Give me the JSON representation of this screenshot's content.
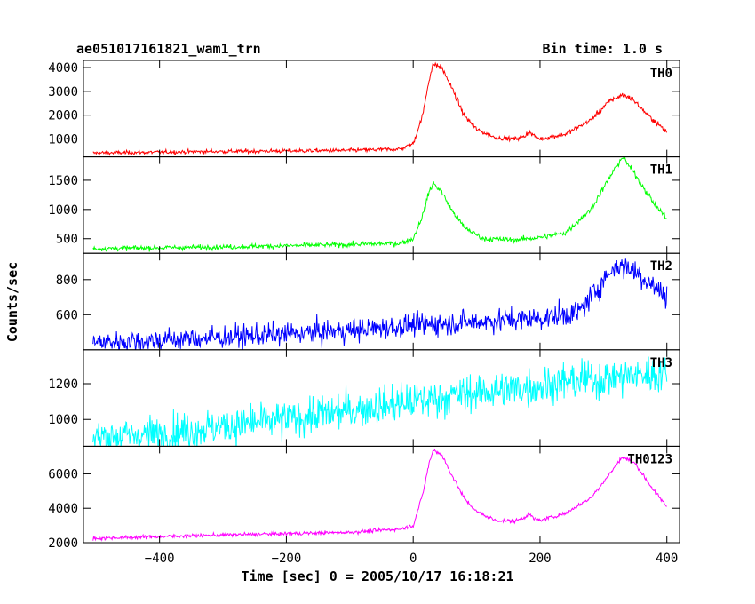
{
  "chart_data": {
    "type": "line",
    "title": "ae051017161821_wam1_trn",
    "subtitle": "Bin time: 1.0 s",
    "xlabel": "Time [sec] 0 = 2005/10/17 16:18:21",
    "ylabel": "Counts/sec",
    "xlim": [
      -520,
      420
    ],
    "x_ticks": [
      -400,
      -200,
      0,
      200,
      400
    ],
    "x_tick_labels": [
      "−400",
      "−200",
      "0",
      "200",
      "400"
    ],
    "x_range": [
      -505,
      400
    ],
    "grid": false,
    "panels": [
      {
        "name": "TH0",
        "color": "#ff0000",
        "ylim": [
          250,
          4300
        ],
        "y_ticks": [
          1000,
          2000,
          3000,
          4000
        ],
        "y_tick_labels": [
          "1000",
          "2000",
          "3000",
          "4000"
        ],
        "noise": 35,
        "keypoints": [
          [
            -505,
            410
          ],
          [
            -300,
            480
          ],
          [
            -100,
            520
          ],
          [
            -20,
            580
          ],
          [
            0,
            800
          ],
          [
            15,
            2000
          ],
          [
            25,
            3500
          ],
          [
            32,
            4150
          ],
          [
            45,
            4000
          ],
          [
            60,
            3200
          ],
          [
            80,
            2000
          ],
          [
            100,
            1400
          ],
          [
            130,
            1050
          ],
          [
            160,
            1000
          ],
          [
            175,
            1100
          ],
          [
            182,
            1300
          ],
          [
            190,
            1150
          ],
          [
            200,
            1000
          ],
          [
            240,
            1200
          ],
          [
            280,
            1800
          ],
          [
            310,
            2600
          ],
          [
            330,
            2850
          ],
          [
            345,
            2700
          ],
          [
            370,
            2000
          ],
          [
            400,
            1300
          ]
        ]
      },
      {
        "name": "TH1",
        "color": "#00ff00",
        "ylim": [
          250,
          1900
        ],
        "y_ticks": [
          500,
          1000,
          1500
        ],
        "y_tick_labels": [
          "500",
          "1000",
          "1500"
        ],
        "noise": 18,
        "keypoints": [
          [
            -505,
            330
          ],
          [
            -300,
            360
          ],
          [
            -100,
            400
          ],
          [
            -20,
            420
          ],
          [
            0,
            500
          ],
          [
            15,
            900
          ],
          [
            25,
            1300
          ],
          [
            32,
            1450
          ],
          [
            45,
            1300
          ],
          [
            60,
            1000
          ],
          [
            80,
            700
          ],
          [
            110,
            500
          ],
          [
            160,
            480
          ],
          [
            200,
            520
          ],
          [
            240,
            600
          ],
          [
            280,
            1000
          ],
          [
            310,
            1550
          ],
          [
            330,
            1900
          ],
          [
            350,
            1600
          ],
          [
            380,
            1100
          ],
          [
            400,
            850
          ]
        ]
      },
      {
        "name": "TH2",
        "color": "#0000ff",
        "ylim": [
          400,
          950
        ],
        "y_ticks": [
          600,
          800
        ],
        "y_tick_labels": [
          "600",
          "800"
        ],
        "noise": 28,
        "keypoints": [
          [
            -505,
            440
          ],
          [
            -300,
            470
          ],
          [
            -100,
            510
          ],
          [
            0,
            540
          ],
          [
            100,
            560
          ],
          [
            200,
            580
          ],
          [
            260,
            610
          ],
          [
            280,
            700
          ],
          [
            300,
            800
          ],
          [
            320,
            880
          ],
          [
            340,
            870
          ],
          [
            360,
            820
          ],
          [
            380,
            760
          ],
          [
            400,
            700
          ]
        ]
      },
      {
        "name": "TH3",
        "color": "#00ffff",
        "ylim": [
          850,
          1390
        ],
        "y_ticks": [
          1000,
          1200
        ],
        "y_tick_labels": [
          "1000",
          "1200"
        ],
        "noise": 45,
        "keypoints": [
          [
            -505,
            900
          ],
          [
            -400,
            920
          ],
          [
            -300,
            960
          ],
          [
            -200,
            1000
          ],
          [
            -100,
            1050
          ],
          [
            0,
            1100
          ],
          [
            100,
            1150
          ],
          [
            200,
            1190
          ],
          [
            300,
            1230
          ],
          [
            400,
            1260
          ]
        ]
      },
      {
        "name": "TH0123",
        "color": "#ff00ff",
        "ylim": [
          2000,
          7600
        ],
        "y_ticks": [
          2000,
          4000,
          6000
        ],
        "y_tick_labels": [
          "2000",
          "4000",
          "6000"
        ],
        "noise": 45,
        "keypoints": [
          [
            -505,
            2250
          ],
          [
            -300,
            2450
          ],
          [
            -100,
            2600
          ],
          [
            -20,
            2800
          ],
          [
            0,
            3000
          ],
          [
            15,
            4800
          ],
          [
            25,
            6600
          ],
          [
            32,
            7400
          ],
          [
            45,
            7100
          ],
          [
            60,
            6000
          ],
          [
            80,
            4600
          ],
          [
            100,
            3800
          ],
          [
            130,
            3300
          ],
          [
            160,
            3250
          ],
          [
            175,
            3450
          ],
          [
            182,
            3700
          ],
          [
            190,
            3400
          ],
          [
            200,
            3300
          ],
          [
            240,
            3700
          ],
          [
            280,
            4600
          ],
          [
            310,
            6000
          ],
          [
            330,
            7000
          ],
          [
            350,
            6600
          ],
          [
            380,
            5000
          ],
          [
            400,
            4100
          ]
        ]
      }
    ]
  }
}
